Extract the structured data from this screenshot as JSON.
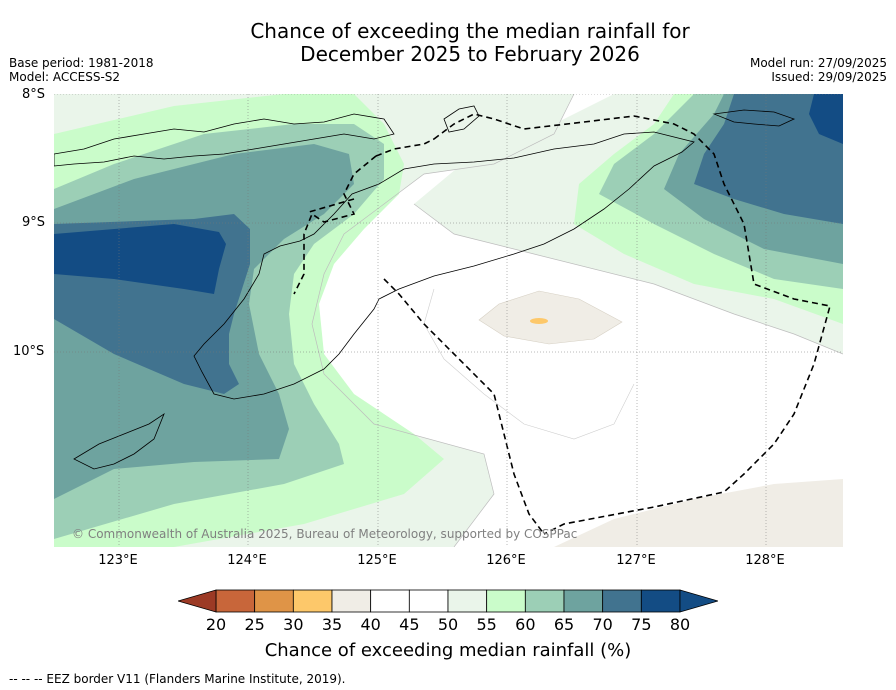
{
  "title_line1": "Chance of exceeding the median rainfall for",
  "title_line2": "December 2025 to February 2026",
  "base_period": "Base period: 1981-2018",
  "model": "Model: ACCESS-S2",
  "model_run": "Model run: 27/09/2025",
  "issued": "Issued: 29/09/2025",
  "lat_labels": [
    "8°S",
    "9°S",
    "10°S"
  ],
  "lon_labels": [
    "123°E",
    "124°E",
    "125°E",
    "126°E",
    "127°E",
    "128°E"
  ],
  "copyright": "© Commonwealth of Australia 2025, Bureau of Meteorology, supported by COSPPac",
  "colorbar": {
    "ticks": [
      "20",
      "25",
      "30",
      "35",
      "40",
      "45",
      "50",
      "55",
      "60",
      "65",
      "70",
      "75",
      "80"
    ],
    "colors": [
      "#b14a2a",
      "#c8663a",
      "#df9447",
      "#fdc86a",
      "#f0ede6",
      "#ffffff",
      "#ffffff",
      "#eaf5ea",
      "#cafcca",
      "#9ccfb6",
      "#6ea39f",
      "#41738f",
      "#134c84"
    ],
    "under_color": "#9c3a25",
    "over_color": "#134c84",
    "label": "Chance of exceeding median rainfall (%)"
  },
  "footer": "--  --  -- EEZ border V11 (Flanders Marine Institute, 2019)."
}
